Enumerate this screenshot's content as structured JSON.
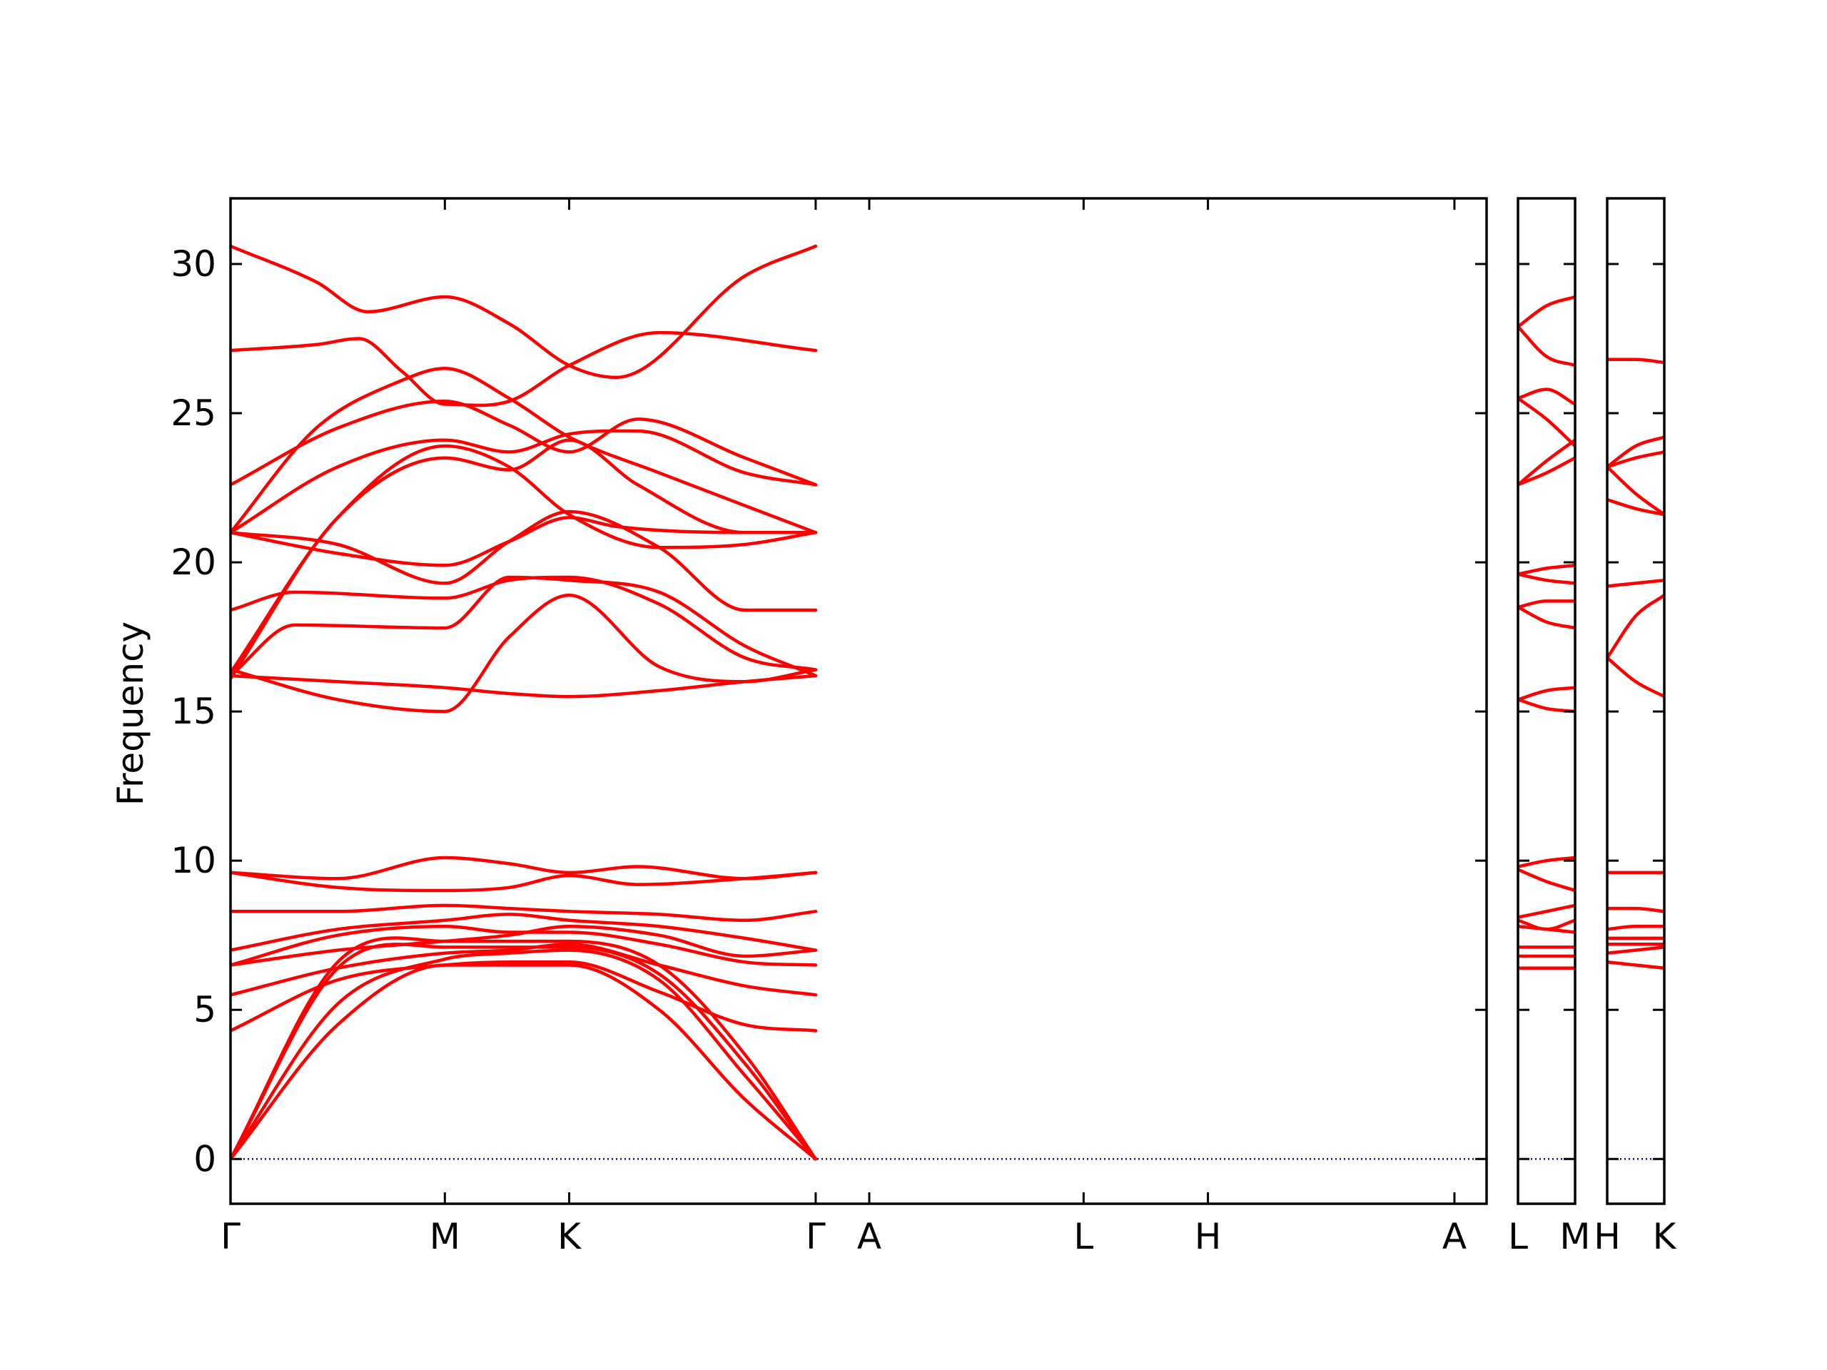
{
  "chart_data": {
    "type": "line",
    "ylabel": "Frequency",
    "ylim": [
      -1.5,
      32.2
    ],
    "yticks": [
      0,
      5,
      10,
      15,
      20,
      25,
      30
    ],
    "zero_line": true,
    "colors": {
      "bands": "#ff0000",
      "zero_line": "#0000cc",
      "axes": "#000000"
    },
    "panels": [
      {
        "xlim": [
          0,
          5.86
        ],
        "ticks": [
          {
            "x": 0,
            "label": "Γ"
          },
          {
            "x": 1.0,
            "label": "M"
          },
          {
            "x": 1.58,
            "label": "K"
          },
          {
            "x": 2.73,
            "label": "Γ"
          },
          {
            "x": 2.98,
            "label": "A"
          },
          {
            "x": 3.98,
            "label": "L"
          },
          {
            "x": 4.56,
            "label": "H"
          },
          {
            "x": 5.71,
            "label": "A"
          }
        ],
        "series": [
          {
            "x": [
              0,
              0.5,
              1.0,
              1.3,
              1.58,
              2.0,
              2.4,
              2.73
            ],
            "y": [
              0,
              4.5,
              6.5,
              6.5,
              6.5,
              5.0,
              2.0,
              0
            ]
          },
          {
            "x": [
              0,
              0.5,
              1.0,
              1.3,
              1.58,
              2.0,
              2.4,
              2.73
            ],
            "y": [
              0,
              5.2,
              6.7,
              6.9,
              7.0,
              6.0,
              2.8,
              0
            ]
          },
          {
            "x": [
              0,
              0.5,
              1.0,
              1.3,
              1.58,
              2.0,
              2.4,
              2.73
            ],
            "y": [
              0,
              6.4,
              7.1,
              7.1,
              7.1,
              6.2,
              3.2,
              0
            ]
          },
          {
            "x": [
              0,
              0.5,
              1.0,
              1.3,
              1.58,
              2.0,
              2.4,
              2.73
            ],
            "y": [
              0,
              6.6,
              7.3,
              7.3,
              7.3,
              6.5,
              3.5,
              0
            ]
          },
          {
            "x": [
              0,
              0.5,
              1.0,
              1.3,
              1.58,
              2.0,
              2.4,
              2.73
            ],
            "y": [
              4.3,
              6.0,
              6.5,
              6.6,
              6.6,
              5.6,
              4.5,
              4.3
            ]
          },
          {
            "x": [
              0,
              0.5,
              1.0,
              1.3,
              1.58,
              2.0,
              2.4,
              2.73
            ],
            "y": [
              5.5,
              6.4,
              6.9,
              7.0,
              7.2,
              6.5,
              5.8,
              5.5
            ]
          },
          {
            "x": [
              0,
              0.5,
              1.0,
              1.3,
              1.58,
              2.0,
              2.4,
              2.73
            ],
            "y": [
              6.5,
              7.5,
              7.8,
              7.6,
              7.6,
              7.2,
              6.6,
              6.5
            ]
          },
          {
            "x": [
              0,
              0.5,
              1.0,
              1.3,
              1.58,
              2.0,
              2.4,
              2.73
            ],
            "y": [
              6.5,
              7.0,
              7.3,
              7.5,
              7.8,
              7.5,
              6.8,
              7.0
            ]
          },
          {
            "x": [
              0,
              0.5,
              1.0,
              1.3,
              1.58,
              2.0,
              2.4,
              2.73
            ],
            "y": [
              7.0,
              7.7,
              8.0,
              8.2,
              8.0,
              7.8,
              7.4,
              7.0
            ]
          },
          {
            "x": [
              0,
              0.5,
              1.0,
              1.3,
              1.58,
              2.0,
              2.4,
              2.73
            ],
            "y": [
              8.3,
              8.3,
              8.5,
              8.4,
              8.3,
              8.2,
              8.0,
              8.3
            ]
          },
          {
            "x": [
              0,
              0.5,
              1.0,
              1.3,
              1.58,
              1.9,
              2.4,
              2.73
            ],
            "y": [
              9.6,
              9.4,
              10.1,
              9.9,
              9.6,
              9.8,
              9.4,
              9.6
            ]
          },
          {
            "x": [
              0,
              0.5,
              1.0,
              1.3,
              1.58,
              1.9,
              2.4,
              2.73
            ],
            "y": [
              9.6,
              9.1,
              9.0,
              9.1,
              9.5,
              9.2,
              9.4,
              9.6
            ]
          },
          {
            "x": [
              0,
              0.5,
              1.0,
              1.3,
              1.58,
              2.0,
              2.4,
              2.73
            ],
            "y": [
              16.2,
              16.0,
              15.8,
              15.6,
              15.5,
              15.7,
              16.0,
              16.2
            ]
          },
          {
            "x": [
              0,
              0.5,
              1.0,
              1.3,
              1.58,
              2.0,
              2.4,
              2.73
            ],
            "y": [
              16.4,
              15.4,
              15.0,
              17.5,
              18.9,
              16.5,
              16.0,
              16.4
            ]
          },
          {
            "x": [
              0,
              0.3,
              1.0,
              1.3,
              1.58,
              2.0,
              2.4,
              2.73
            ],
            "y": [
              16.2,
              17.9,
              17.8,
              19.5,
              19.4,
              19.0,
              17.2,
              16.2
            ]
          },
          {
            "x": [
              0,
              0.3,
              1.0,
              1.3,
              1.58,
              2.0,
              2.4,
              2.73
            ],
            "y": [
              18.4,
              19.0,
              18.8,
              19.4,
              19.5,
              18.6,
              16.8,
              16.4
            ]
          },
          {
            "x": [
              0,
              0.5,
              1.0,
              1.3,
              1.58,
              2.0,
              2.4,
              2.73
            ],
            "y": [
              16.3,
              21.5,
              23.9,
              23.2,
              21.6,
              20.5,
              20.6,
              21.0
            ]
          },
          {
            "x": [
              0,
              0.5,
              1.0,
              1.3,
              1.58,
              2.0,
              2.4,
              2.73
            ],
            "y": [
              21.0,
              20.6,
              19.3,
              20.7,
              21.7,
              20.5,
              18.4,
              18.4
            ]
          },
          {
            "x": [
              0,
              0.5,
              1.0,
              1.3,
              1.58,
              1.8,
              2.4,
              2.73
            ],
            "y": [
              21.0,
              20.3,
              19.9,
              20.7,
              21.5,
              21.2,
              21.0,
              21.0
            ]
          },
          {
            "x": [
              0,
              0.5,
              1.0,
              1.3,
              1.58,
              1.9,
              2.4,
              2.73
            ],
            "y": [
              16.1,
              21.5,
              23.5,
              23.1,
              24.1,
              22.6,
              21.0,
              21.0
            ]
          },
          {
            "x": [
              0,
              0.5,
              1.0,
              1.3,
              1.58,
              1.9,
              2.4,
              2.73
            ],
            "y": [
              21.0,
              23.2,
              24.1,
              23.7,
              24.3,
              24.4,
              23.0,
              22.6
            ]
          },
          {
            "x": [
              0,
              0.5,
              1.0,
              1.3,
              1.58,
              1.9,
              2.4,
              2.73
            ],
            "y": [
              22.6,
              24.5,
              25.4,
              24.6,
              23.7,
              24.8,
              23.5,
              22.6
            ]
          },
          {
            "x": [
              0,
              0.4,
              0.8,
              1.0,
              1.3,
              1.58,
              2.0,
              2.73
            ],
            "y": [
              21.0,
              24.5,
              26.1,
              26.5,
              25.5,
              24.2,
              23.0,
              21.0
            ]
          },
          {
            "x": [
              0,
              0.4,
              0.6,
              0.8,
              1.0,
              1.3,
              1.58,
              2.0,
              2.73
            ],
            "y": [
              27.1,
              27.3,
              27.5,
              26.4,
              25.3,
              25.4,
              26.6,
              27.7,
              27.1
            ]
          },
          {
            "x": [
              0,
              0.4,
              0.64,
              1.0,
              1.3,
              1.58,
              1.8,
              2.4,
              2.73
            ],
            "y": [
              30.6,
              29.4,
              28.4,
              28.9,
              28.0,
              26.6,
              26.2,
              29.6,
              30.6
            ]
          }
        ]
      },
      {
        "xlim": [
          0,
          0.26
        ],
        "ticks": [
          {
            "x": 0,
            "label": "L"
          },
          {
            "x": 0.26,
            "label": "M"
          }
        ],
        "series": [
          {
            "x": [
              0,
              0.13,
              0.26
            ],
            "y": [
              6.4,
              6.4,
              6.4
            ]
          },
          {
            "x": [
              0,
              0.13,
              0.26
            ],
            "y": [
              6.8,
              6.8,
              6.8
            ]
          },
          {
            "x": [
              0,
              0.13,
              0.26
            ],
            "y": [
              7.1,
              7.1,
              7.1
            ]
          },
          {
            "x": [
              0,
              0.13,
              0.26
            ],
            "y": [
              7.8,
              7.7,
              7.6
            ]
          },
          {
            "x": [
              0,
              0.13,
              0.26
            ],
            "y": [
              8.0,
              7.7,
              8.0
            ]
          },
          {
            "x": [
              0,
              0.13,
              0.26
            ],
            "y": [
              8.1,
              8.3,
              8.5
            ]
          },
          {
            "x": [
              0,
              0.13,
              0.26
            ],
            "y": [
              9.7,
              9.3,
              9.0
            ]
          },
          {
            "x": [
              0,
              0.13,
              0.26
            ],
            "y": [
              9.8,
              10.0,
              10.1
            ]
          },
          {
            "x": [
              0,
              0.13,
              0.26
            ],
            "y": [
              15.4,
              15.1,
              15.0
            ]
          },
          {
            "x": [
              0,
              0.13,
              0.26
            ],
            "y": [
              15.4,
              15.7,
              15.8
            ]
          },
          {
            "x": [
              0,
              0.13,
              0.26
            ],
            "y": [
              18.5,
              18.0,
              17.8
            ]
          },
          {
            "x": [
              0,
              0.13,
              0.26
            ],
            "y": [
              18.5,
              18.7,
              18.7
            ]
          },
          {
            "x": [
              0,
              0.13,
              0.26
            ],
            "y": [
              19.6,
              19.4,
              19.3
            ]
          },
          {
            "x": [
              0,
              0.13,
              0.26
            ],
            "y": [
              19.6,
              19.8,
              19.9
            ]
          },
          {
            "x": [
              0,
              0.13,
              0.26
            ],
            "y": [
              22.6,
              23.0,
              23.5
            ]
          },
          {
            "x": [
              0,
              0.13,
              0.26
            ],
            "y": [
              22.6,
              23.4,
              24.1
            ]
          },
          {
            "x": [
              0,
              0.13,
              0.26
            ],
            "y": [
              25.5,
              24.8,
              23.9
            ]
          },
          {
            "x": [
              0,
              0.13,
              0.26
            ],
            "y": [
              25.5,
              25.8,
              25.3
            ]
          },
          {
            "x": [
              0,
              0.13,
              0.26
            ],
            "y": [
              27.9,
              26.9,
              26.6
            ]
          },
          {
            "x": [
              0,
              0.13,
              0.26
            ],
            "y": [
              27.9,
              28.6,
              28.9
            ]
          }
        ]
      },
      {
        "xlim": [
          0,
          0.26
        ],
        "ticks": [
          {
            "x": 0,
            "label": "H"
          },
          {
            "x": 0.26,
            "label": "K"
          }
        ],
        "series": [
          {
            "x": [
              0,
              0.13,
              0.26
            ],
            "y": [
              6.6,
              6.5,
              6.4
            ]
          },
          {
            "x": [
              0,
              0.13,
              0.26
            ],
            "y": [
              6.9,
              7.0,
              7.1
            ]
          },
          {
            "x": [
              0,
              0.13,
              0.26
            ],
            "y": [
              7.2,
              7.2,
              7.2
            ]
          },
          {
            "x": [
              0,
              0.13,
              0.26
            ],
            "y": [
              7.4,
              7.4,
              7.4
            ]
          },
          {
            "x": [
              0,
              0.13,
              0.26
            ],
            "y": [
              7.7,
              7.8,
              7.8
            ]
          },
          {
            "x": [
              0,
              0.13,
              0.26
            ],
            "y": [
              8.4,
              8.4,
              8.3
            ]
          },
          {
            "x": [
              0,
              0.13,
              0.26
            ],
            "y": [
              9.6,
              9.6,
              9.6
            ]
          },
          {
            "x": [
              0,
              0.13,
              0.26
            ],
            "y": [
              16.8,
              16.0,
              15.5
            ]
          },
          {
            "x": [
              0,
              0.13,
              0.26
            ],
            "y": [
              16.8,
              18.2,
              18.9
            ]
          },
          {
            "x": [
              0,
              0.13,
              0.26
            ],
            "y": [
              19.2,
              19.3,
              19.4
            ]
          },
          {
            "x": [
              0,
              0.13,
              0.26
            ],
            "y": [
              22.1,
              21.8,
              21.6
            ]
          },
          {
            "x": [
              0,
              0.13,
              0.26
            ],
            "y": [
              23.2,
              22.3,
              21.6
            ]
          },
          {
            "x": [
              0,
              0.13,
              0.26
            ],
            "y": [
              23.2,
              23.5,
              23.7
            ]
          },
          {
            "x": [
              0,
              0.13,
              0.26
            ],
            "y": [
              23.2,
              23.9,
              24.2
            ]
          },
          {
            "x": [
              0,
              0.13,
              0.26
            ],
            "y": [
              26.8,
              26.8,
              26.7
            ]
          }
        ]
      }
    ]
  }
}
